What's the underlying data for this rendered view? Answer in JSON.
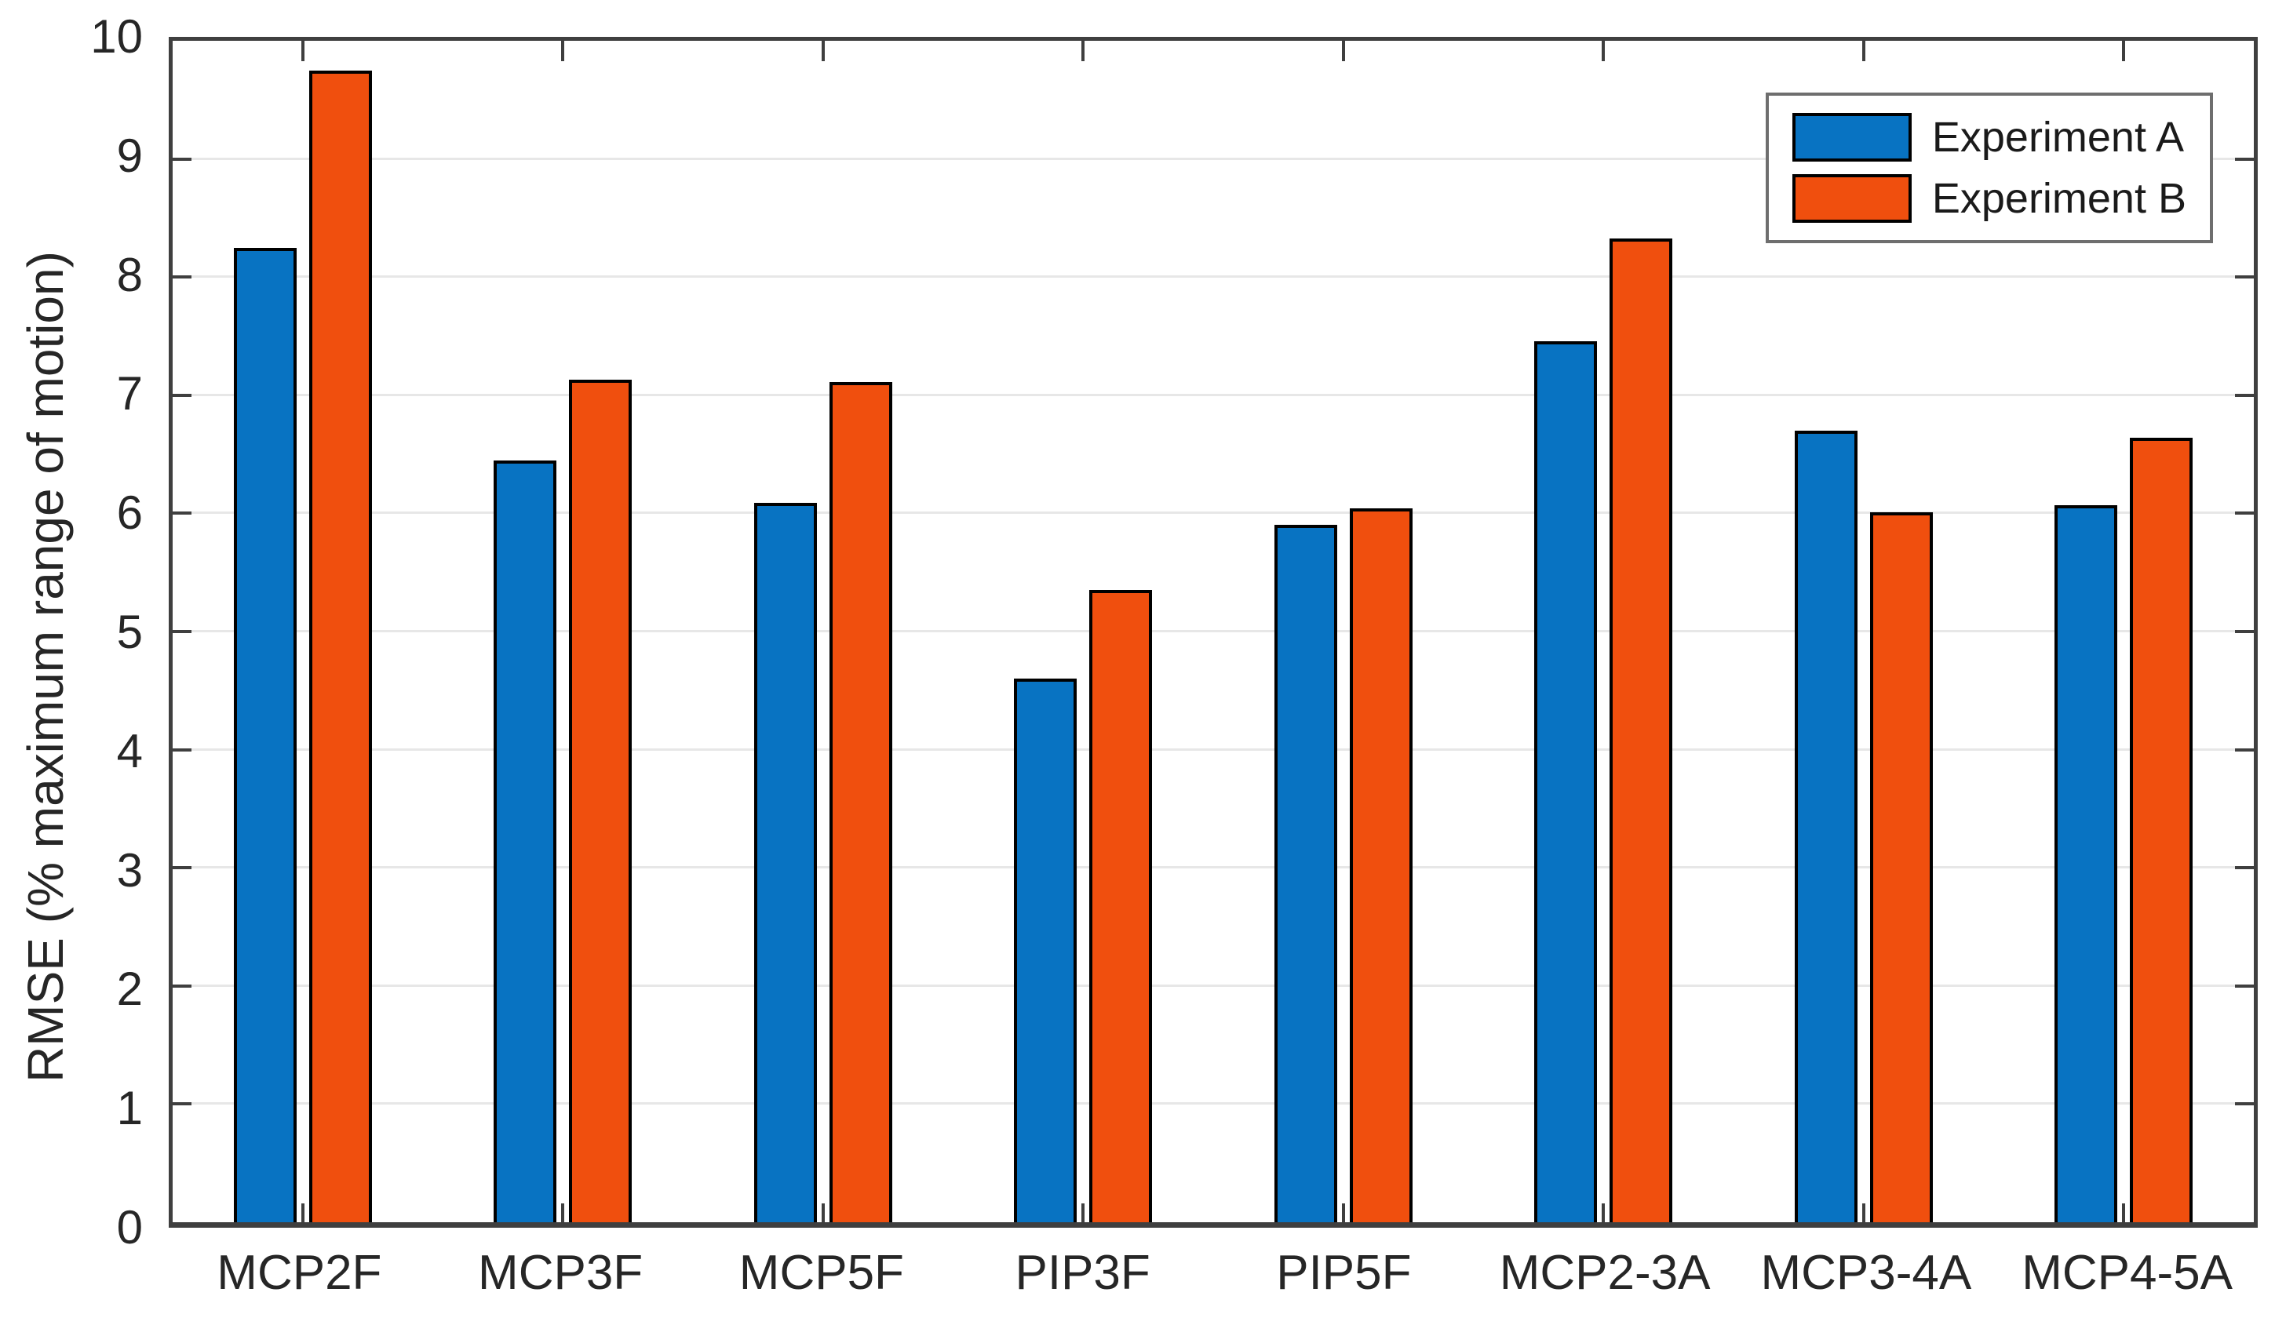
{
  "chart_data": {
    "type": "bar",
    "title": "",
    "xlabel": "",
    "ylabel": "RMSE (% maximum range of motion)",
    "ylim": [
      0,
      10
    ],
    "yticks": [
      0,
      1,
      2,
      3,
      4,
      5,
      6,
      7,
      8,
      9,
      10
    ],
    "grid": "horizontal",
    "legend_position": "top-right",
    "categories": [
      "MCP2F",
      "MCP3F",
      "MCP5F",
      "PIP3F",
      "PIP5F",
      "MCP2-3A",
      "MCP3-4A",
      "MCP4-5A"
    ],
    "series": [
      {
        "name": "Experiment A",
        "color": "#0873C2",
        "values": [
          8.25,
          6.45,
          6.09,
          4.6,
          5.9,
          7.46,
          6.7,
          6.07
        ]
      },
      {
        "name": "Experiment B",
        "color": "#F04F0E",
        "values": [
          9.75,
          7.13,
          7.11,
          5.35,
          6.04,
          8.33,
          6.01,
          6.64
        ]
      }
    ],
    "colors": {
      "axis": "#3f3f3f",
      "grid": "#e7e7e7",
      "bar_edge": "#000000",
      "legend_border": "#6e6e6e",
      "text": "#262626"
    }
  }
}
